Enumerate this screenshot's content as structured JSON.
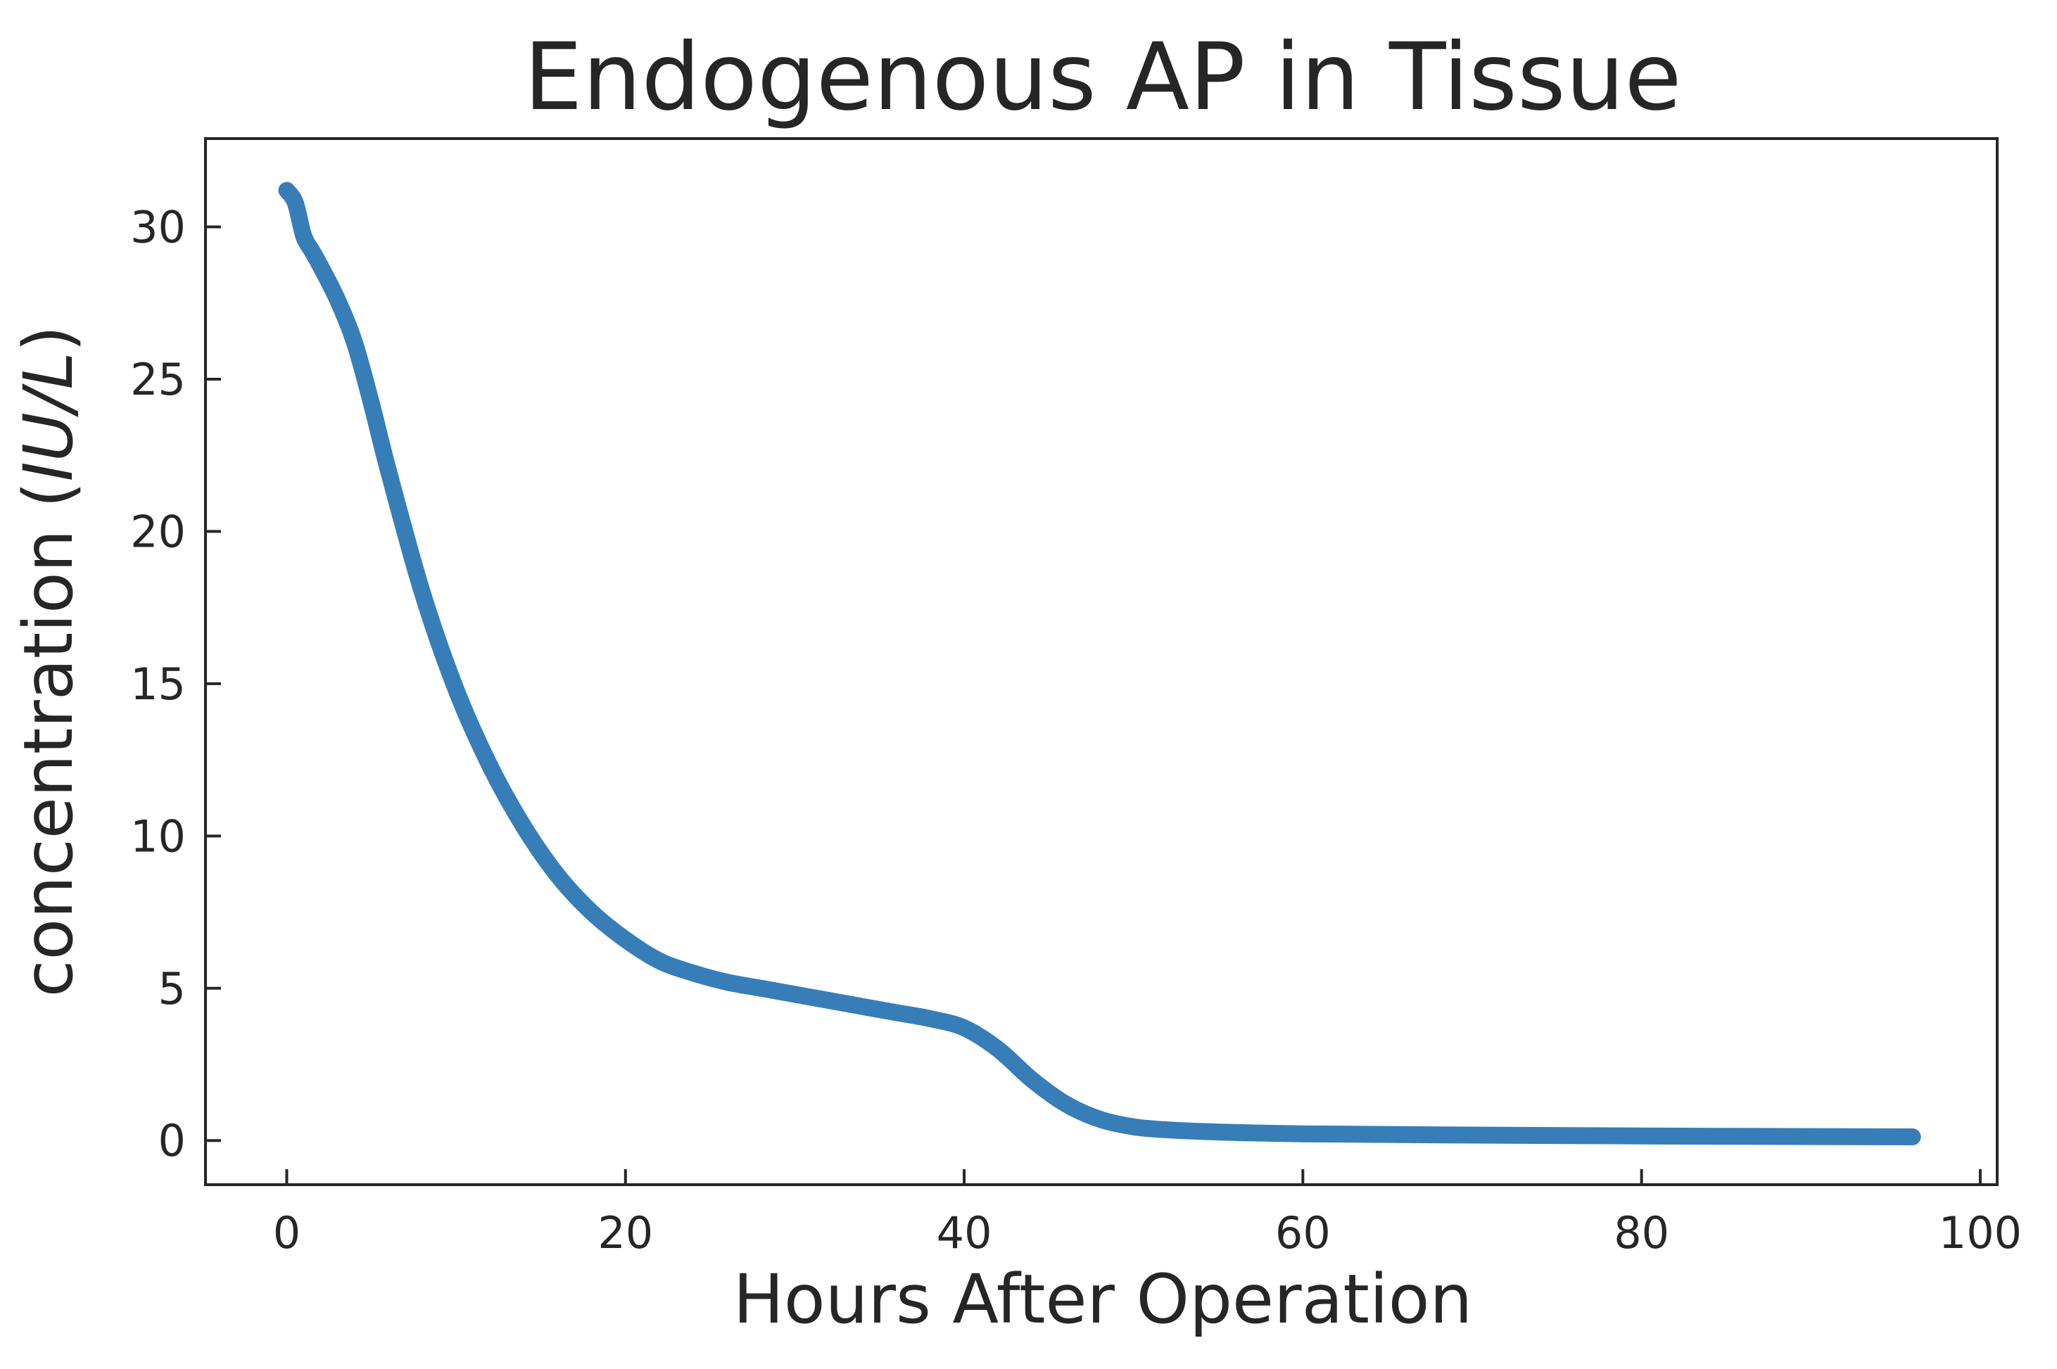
{
  "chart_data": {
    "type": "line",
    "title": "Endogenous AP in Tissue",
    "xlabel": "Hours After Operation",
    "ylabel_prefix": "concentration (",
    "ylabel_unit": "IU/L",
    "ylabel_suffix": ")",
    "xlim": [
      -4.8,
      101.0
    ],
    "ylim": [
      -1.45,
      32.9
    ],
    "xticks": [
      0,
      20,
      40,
      60,
      80,
      100
    ],
    "yticks": [
      0,
      5,
      10,
      15,
      20,
      25,
      30
    ],
    "grid": false,
    "colors": {
      "series": "#377eb8",
      "axes": "#262626"
    },
    "series": [
      {
        "x": [
          0,
          0.5,
          1,
          1.5,
          2,
          3,
          4,
          5,
          6,
          8,
          10,
          12,
          14,
          16,
          18,
          20,
          22,
          24,
          26,
          28,
          30,
          32,
          34,
          36,
          38,
          40,
          42,
          44,
          46,
          48,
          50,
          52,
          55,
          60,
          70,
          80,
          90,
          96
        ],
        "y": [
          31.2,
          30.8,
          29.7,
          29.2,
          28.7,
          27.6,
          26.2,
          24.2,
          22.0,
          18.0,
          14.8,
          12.3,
          10.3,
          8.7,
          7.5,
          6.6,
          5.9,
          5.5,
          5.2,
          5.0,
          4.8,
          4.6,
          4.4,
          4.2,
          4.0,
          3.7,
          3.0,
          2.0,
          1.2,
          0.7,
          0.45,
          0.35,
          0.28,
          0.22,
          0.18,
          0.15,
          0.13,
          0.12
        ]
      }
    ]
  }
}
